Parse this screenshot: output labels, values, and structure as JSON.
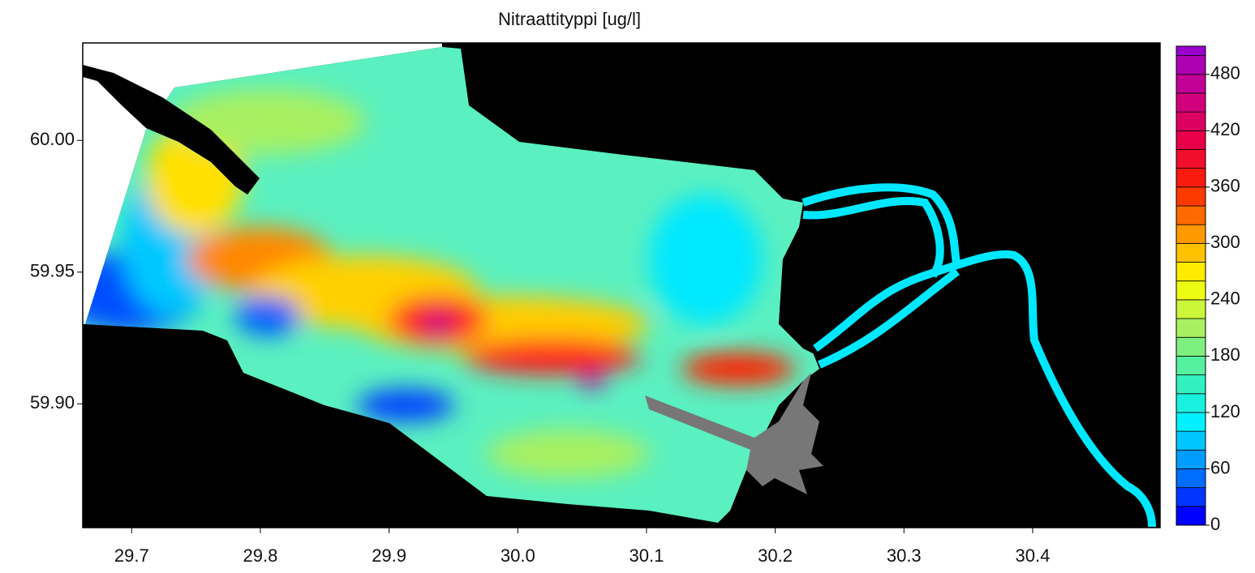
{
  "chart_data": {
    "type": "contour",
    "title": "Nitraattityppi [ug/l]",
    "xlim": [
      29.662,
      30.499
    ],
    "ylim": [
      59.853,
      60.037
    ],
    "xticks": [
      29.7,
      29.8,
      29.9,
      {
        "value": 30,
        "label": "30.0"
      },
      30.1,
      30.2,
      30.3,
      30.4
    ],
    "yticks": [
      {
        "value": 59.9,
        "label": "59.90"
      },
      59.95,
      {
        "value": 60,
        "label": "60.00"
      }
    ],
    "colorbar": {
      "lim": [
        0,
        510
      ],
      "ticks": [
        0,
        60,
        120,
        180,
        240,
        300,
        360,
        420,
        480
      ],
      "levels": [
        0,
        20,
        40,
        60,
        80,
        100,
        120,
        140,
        160,
        180,
        200,
        220,
        240,
        260,
        280,
        300,
        320,
        340,
        360,
        380,
        400,
        420,
        440,
        460,
        480,
        500
      ],
      "colormap": [
        "#0000ff",
        "#0088ff",
        "#00f0ff",
        "#40f0b0",
        "#a8f060",
        "#ffff00",
        "#ff9900",
        "#ff2200",
        "#e8004a",
        "#cc0088",
        "#9900cc"
      ]
    }
  }
}
